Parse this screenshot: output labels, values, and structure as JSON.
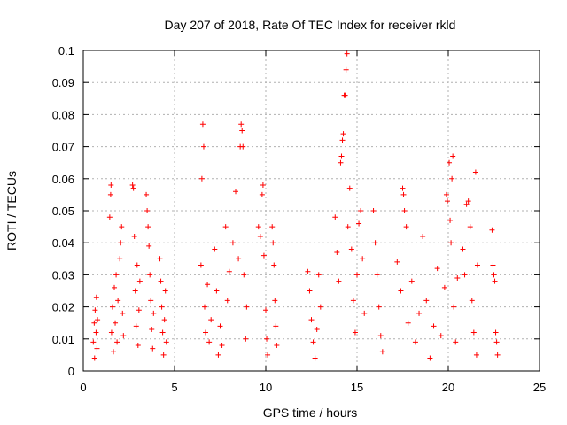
{
  "chart_data": {
    "type": "scatter",
    "title": "Day 207 of 2018, Rate Of TEC Index for receiver rkld",
    "xlabel": "GPS time / hours",
    "ylabel": "ROTI / TECUs",
    "xlim": [
      0,
      25
    ],
    "ylim": [
      0,
      0.1
    ],
    "x_ticks": [
      0,
      5,
      10,
      15,
      20,
      25
    ],
    "y_ticks": [
      0,
      0.01,
      0.02,
      0.03,
      0.04,
      0.05,
      0.06,
      0.07,
      0.08,
      0.09,
      0.1
    ],
    "x_tick_labels": [
      "0",
      "5",
      "10",
      "15",
      "20",
      "25"
    ],
    "y_tick_labels": [
      "0",
      "0.01",
      "0.02",
      "0.03",
      "0.04",
      "0.05",
      "0.06",
      "0.07",
      "0.08",
      "0.09",
      "0.1"
    ],
    "grid": true,
    "marker": "+",
    "color": "#ff0000",
    "series": [
      {
        "points": [
          [
            0.55,
            0.009
          ],
          [
            0.6,
            0.015
          ],
          [
            0.62,
            0.004
          ],
          [
            0.65,
            0.019
          ],
          [
            0.7,
            0.012
          ],
          [
            0.72,
            0.023
          ],
          [
            0.75,
            0.007
          ],
          [
            0.78,
            0.016
          ],
          [
            1.45,
            0.048
          ],
          [
            1.5,
            0.055
          ],
          [
            1.52,
            0.058
          ],
          [
            1.55,
            0.012
          ],
          [
            1.6,
            0.02
          ],
          [
            1.65,
            0.006
          ],
          [
            1.7,
            0.026
          ],
          [
            1.75,
            0.015
          ],
          [
            1.8,
            0.03
          ],
          [
            1.85,
            0.009
          ],
          [
            1.9,
            0.022
          ],
          [
            2.0,
            0.035
          ],
          [
            2.05,
            0.04
          ],
          [
            2.1,
            0.045
          ],
          [
            2.15,
            0.018
          ],
          [
            2.2,
            0.011
          ],
          [
            2.7,
            0.058
          ],
          [
            2.75,
            0.057
          ],
          [
            2.8,
            0.042
          ],
          [
            2.85,
            0.025
          ],
          [
            2.9,
            0.014
          ],
          [
            2.95,
            0.033
          ],
          [
            3.0,
            0.008
          ],
          [
            3.05,
            0.019
          ],
          [
            3.1,
            0.028
          ],
          [
            3.45,
            0.055
          ],
          [
            3.5,
            0.05
          ],
          [
            3.55,
            0.045
          ],
          [
            3.6,
            0.039
          ],
          [
            3.65,
            0.03
          ],
          [
            3.7,
            0.022
          ],
          [
            3.75,
            0.013
          ],
          [
            3.8,
            0.007
          ],
          [
            3.85,
            0.018
          ],
          [
            4.2,
            0.035
          ],
          [
            4.25,
            0.028
          ],
          [
            4.3,
            0.02
          ],
          [
            4.35,
            0.012
          ],
          [
            4.4,
            0.005
          ],
          [
            4.45,
            0.016
          ],
          [
            4.5,
            0.025
          ],
          [
            4.55,
            0.009
          ],
          [
            6.45,
            0.033
          ],
          [
            6.5,
            0.06
          ],
          [
            6.55,
            0.077
          ],
          [
            6.6,
            0.07
          ],
          [
            6.65,
            0.02
          ],
          [
            6.7,
            0.012
          ],
          [
            6.8,
            0.027
          ],
          [
            6.9,
            0.009
          ],
          [
            7.0,
            0.016
          ],
          [
            7.2,
            0.038
          ],
          [
            7.3,
            0.025
          ],
          [
            7.4,
            0.005
          ],
          [
            7.5,
            0.014
          ],
          [
            7.6,
            0.008
          ],
          [
            7.8,
            0.045
          ],
          [
            7.9,
            0.022
          ],
          [
            8.0,
            0.031
          ],
          [
            8.2,
            0.04
          ],
          [
            8.35,
            0.056
          ],
          [
            8.5,
            0.035
          ],
          [
            8.6,
            0.07
          ],
          [
            8.65,
            0.077
          ],
          [
            8.7,
            0.075
          ],
          [
            8.75,
            0.07
          ],
          [
            8.8,
            0.03
          ],
          [
            8.9,
            0.01
          ],
          [
            8.95,
            0.02
          ],
          [
            9.6,
            0.045
          ],
          [
            9.7,
            0.042
          ],
          [
            9.8,
            0.055
          ],
          [
            9.85,
            0.058
          ],
          [
            9.9,
            0.036
          ],
          [
            10.0,
            0.019
          ],
          [
            10.05,
            0.01
          ],
          [
            10.1,
            0.005
          ],
          [
            10.35,
            0.045
          ],
          [
            10.4,
            0.04
          ],
          [
            10.45,
            0.033
          ],
          [
            10.5,
            0.022
          ],
          [
            10.55,
            0.014
          ],
          [
            10.6,
            0.008
          ],
          [
            12.3,
            0.031
          ],
          [
            12.4,
            0.025
          ],
          [
            12.5,
            0.016
          ],
          [
            12.6,
            0.009
          ],
          [
            12.7,
            0.004
          ],
          [
            12.8,
            0.013
          ],
          [
            12.9,
            0.03
          ],
          [
            13.0,
            0.02
          ],
          [
            13.8,
            0.048
          ],
          [
            13.9,
            0.037
          ],
          [
            14.0,
            0.028
          ],
          [
            14.1,
            0.065
          ],
          [
            14.15,
            0.067
          ],
          [
            14.2,
            0.072
          ],
          [
            14.25,
            0.074
          ],
          [
            14.3,
            0.086
          ],
          [
            14.35,
            0.086
          ],
          [
            14.4,
            0.094
          ],
          [
            14.45,
            0.099
          ],
          [
            14.5,
            0.045
          ],
          [
            14.6,
            0.057
          ],
          [
            14.7,
            0.038
          ],
          [
            14.8,
            0.022
          ],
          [
            14.9,
            0.012
          ],
          [
            15.0,
            0.03
          ],
          [
            15.1,
            0.046
          ],
          [
            15.2,
            0.05
          ],
          [
            15.3,
            0.035
          ],
          [
            15.4,
            0.018
          ],
          [
            15.9,
            0.05
          ],
          [
            16.0,
            0.04
          ],
          [
            16.1,
            0.03
          ],
          [
            16.2,
            0.02
          ],
          [
            16.3,
            0.011
          ],
          [
            16.4,
            0.006
          ],
          [
            17.2,
            0.034
          ],
          [
            17.4,
            0.025
          ],
          [
            17.5,
            0.057
          ],
          [
            17.55,
            0.055
          ],
          [
            17.6,
            0.05
          ],
          [
            17.7,
            0.045
          ],
          [
            17.8,
            0.015
          ],
          [
            18.0,
            0.028
          ],
          [
            18.2,
            0.009
          ],
          [
            18.4,
            0.018
          ],
          [
            18.6,
            0.042
          ],
          [
            18.8,
            0.022
          ],
          [
            19.0,
            0.004
          ],
          [
            19.2,
            0.014
          ],
          [
            19.4,
            0.032
          ],
          [
            19.6,
            0.011
          ],
          [
            19.8,
            0.026
          ],
          [
            19.9,
            0.055
          ],
          [
            19.95,
            0.053
          ],
          [
            20.05,
            0.065
          ],
          [
            20.1,
            0.047
          ],
          [
            20.15,
            0.04
          ],
          [
            20.2,
            0.06
          ],
          [
            20.25,
            0.067
          ],
          [
            20.3,
            0.02
          ],
          [
            20.4,
            0.009
          ],
          [
            20.5,
            0.029
          ],
          [
            20.8,
            0.038
          ],
          [
            20.9,
            0.03
          ],
          [
            21.0,
            0.052
          ],
          [
            21.1,
            0.053
          ],
          [
            21.2,
            0.045
          ],
          [
            21.3,
            0.022
          ],
          [
            21.4,
            0.012
          ],
          [
            21.5,
            0.062
          ],
          [
            21.55,
            0.005
          ],
          [
            21.6,
            0.033
          ],
          [
            22.4,
            0.044
          ],
          [
            22.45,
            0.033
          ],
          [
            22.5,
            0.03
          ],
          [
            22.55,
            0.028
          ],
          [
            22.6,
            0.012
          ],
          [
            22.65,
            0.009
          ],
          [
            22.7,
            0.005
          ]
        ]
      }
    ]
  }
}
